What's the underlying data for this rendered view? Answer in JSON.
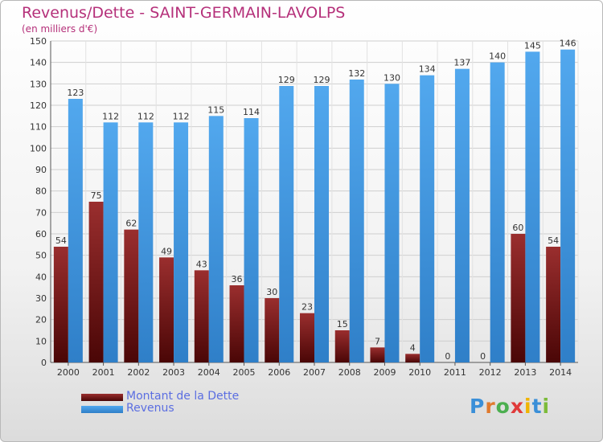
{
  "title": "Revenus/Dette - SAINT-GERMAIN-LAVOLPS",
  "subtitle": "(en milliers d'€)",
  "legend": {
    "debt_label": "Montant de la Dette",
    "revenue_label": "Revenus"
  },
  "logo": {
    "letters": [
      "P",
      "r",
      "o",
      "x",
      "i",
      "t",
      "i"
    ]
  },
  "colors": {
    "debt": "#7a1a1a",
    "revenue": "#3f8fd8",
    "text": "#b5307a",
    "legend_text": "#5b6ee1"
  },
  "chart_data": {
    "type": "bar",
    "title": "Revenus/Dette - SAINT-GERMAIN-LAVOLPS",
    "ylabel": "(en milliers d'€)",
    "categories": [
      "2000",
      "2001",
      "2002",
      "2003",
      "2004",
      "2005",
      "2006",
      "2007",
      "2008",
      "2009",
      "2010",
      "2011",
      "2012",
      "2013",
      "2014"
    ],
    "series": [
      {
        "name": "Montant de la Dette",
        "values": [
          54,
          75,
          62,
          49,
          43,
          36,
          30,
          23,
          15,
          7,
          4,
          0,
          0,
          60,
          54
        ]
      },
      {
        "name": "Revenus",
        "values": [
          123,
          112,
          112,
          112,
          115,
          114,
          129,
          129,
          132,
          130,
          134,
          137,
          140,
          145,
          146
        ]
      }
    ],
    "ylim": [
      0,
      150
    ],
    "yticks": [
      0,
      10,
      20,
      30,
      40,
      50,
      60,
      70,
      80,
      90,
      100,
      110,
      120,
      130,
      140,
      150
    ],
    "grid": true,
    "legend_position": "bottom-left"
  }
}
